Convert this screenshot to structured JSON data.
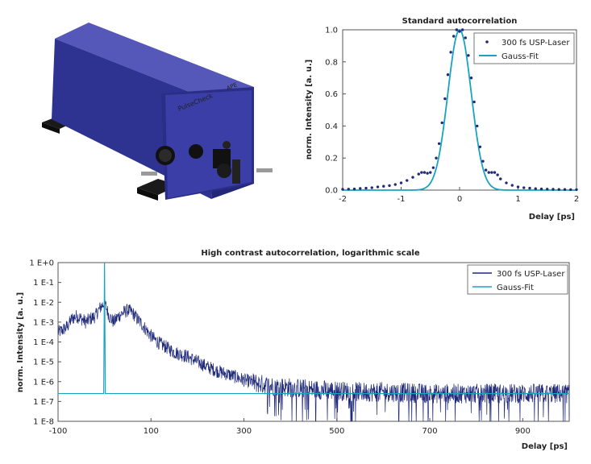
{
  "colors": {
    "laser": "#1f2a7a",
    "fit": "#1aa3c0",
    "device_body": "#3a3e9a",
    "frame": "#555555"
  },
  "product": {
    "front_label": "PulseCheck",
    "brand_mark": "APE"
  },
  "chart_data": [
    {
      "type": "scatter",
      "title": "Standard autocorrelation",
      "xlabel": "Delay [ps]",
      "ylabel": "norm. Intensity [a. u.]",
      "xlim": [
        -2,
        2
      ],
      "ylim": [
        0,
        1.0
      ],
      "xticks": [
        "-2",
        "-1",
        "0",
        "1",
        "2"
      ],
      "yticks": [
        "0.0",
        "0.2",
        "0.4",
        "0.6",
        "0.8",
        "1.0"
      ],
      "grid": false,
      "legend_position": "top-right",
      "series": [
        {
          "name": "300 fs USP-Laser",
          "style": "dots",
          "x": [
            -2.0,
            -1.9,
            -1.8,
            -1.7,
            -1.6,
            -1.5,
            -1.4,
            -1.3,
            -1.2,
            -1.1,
            -1.0,
            -0.9,
            -0.8,
            -0.7,
            -0.65,
            -0.6,
            -0.55,
            -0.5,
            -0.45,
            -0.4,
            -0.35,
            -0.3,
            -0.25,
            -0.2,
            -0.15,
            -0.1,
            -0.05,
            0.0,
            0.05,
            0.1,
            0.15,
            0.2,
            0.25,
            0.3,
            0.35,
            0.4,
            0.45,
            0.5,
            0.55,
            0.6,
            0.65,
            0.7,
            0.8,
            0.9,
            1.0,
            1.1,
            1.2,
            1.3,
            1.4,
            1.5,
            1.6,
            1.7,
            1.8,
            1.9,
            2.0
          ],
          "y": [
            0.005,
            0.006,
            0.007,
            0.01,
            0.012,
            0.015,
            0.02,
            0.024,
            0.028,
            0.035,
            0.045,
            0.06,
            0.08,
            0.1,
            0.11,
            0.11,
            0.105,
            0.11,
            0.14,
            0.2,
            0.29,
            0.42,
            0.57,
            0.72,
            0.86,
            0.96,
            1.0,
            0.99,
            1.0,
            0.95,
            0.84,
            0.7,
            0.55,
            0.4,
            0.27,
            0.18,
            0.125,
            0.11,
            0.11,
            0.11,
            0.095,
            0.07,
            0.045,
            0.03,
            0.02,
            0.015,
            0.012,
            0.009,
            0.007,
            0.006,
            0.005,
            0.004,
            0.004,
            0.003,
            0.003
          ]
        },
        {
          "name": "Gauss-Fit",
          "style": "line",
          "gauss": {
            "amplitude": 1.0,
            "center": 0.0,
            "sigma": 0.2
          }
        }
      ]
    },
    {
      "type": "line",
      "title": "High contrast autocorrelation, logarithmic scale",
      "xlabel": "Delay [ps]",
      "ylabel": "norm. Intensity [a. u.]",
      "xlim": [
        -100,
        1000
      ],
      "ylim": [
        1e-08,
        1
      ],
      "yscale": "log",
      "xticks": [
        "-100",
        "100",
        "300",
        "500",
        "700",
        "900"
      ],
      "yticks": [
        "1 E-8",
        "1 E-7",
        "1 E-6",
        "1 E-5",
        "1 E-4",
        "1 E-3",
        "1 E-2",
        "1 E-1",
        "1 E+0"
      ],
      "grid": false,
      "legend_position": "top-right",
      "series": [
        {
          "name": "300 fs USP-Laser",
          "style": "noisy-line",
          "x": [
            -100,
            -90,
            -80,
            -70,
            -60,
            -50,
            -40,
            -30,
            -20,
            -10,
            0,
            10,
            20,
            30,
            40,
            50,
            60,
            70,
            80,
            90,
            100,
            110,
            120,
            130,
            150,
            175,
            200,
            225,
            250,
            275,
            300,
            330,
            360,
            400,
            450,
            500,
            550,
            600,
            700,
            800,
            900,
            1000
          ],
          "y": [
            0.0003,
            0.0004,
            0.0006,
            0.0015,
            0.002,
            0.0015,
            0.001,
            0.0015,
            0.002,
            0.005,
            0.01,
            0.002,
            0.001,
            0.002,
            0.003,
            0.004,
            0.003,
            0.0015,
            0.0008,
            0.0004,
            0.0002,
            0.00012,
            8e-05,
            6e-05,
            3e-05,
            2e-05,
            1e-05,
            5e-06,
            3e-06,
            2e-06,
            1.2e-06,
            8e-07,
            6e-07,
            5e-07,
            4e-07,
            3.5e-07,
            3e-07,
            3e-07,
            2.5e-07,
            2.5e-07,
            2.5e-07,
            2.5e-07
          ]
        },
        {
          "name": "Gauss-Fit",
          "style": "line",
          "baseline": 2.5e-07,
          "peak_x": 0,
          "peak_y": 1
        }
      ]
    }
  ]
}
